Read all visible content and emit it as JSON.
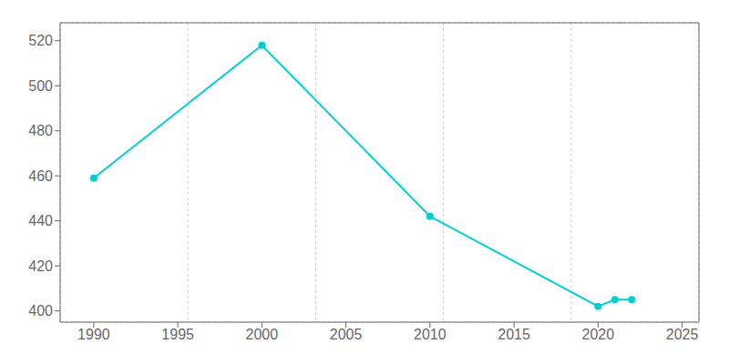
{
  "chart_data": {
    "type": "line",
    "x": [
      1990,
      2000,
      2010,
      2020,
      2021,
      2022
    ],
    "values": [
      459,
      518,
      442,
      402,
      405,
      405
    ],
    "color": "#00CED1",
    "marker": "circle",
    "xlim": [
      1988,
      2026
    ],
    "ylim": [
      395,
      528
    ],
    "xticks": [
      1990,
      1995,
      2000,
      2005,
      2010,
      2015,
      2020,
      2025
    ],
    "yticks": [
      400,
      420,
      440,
      460,
      480,
      500,
      520
    ],
    "grid": true
  }
}
